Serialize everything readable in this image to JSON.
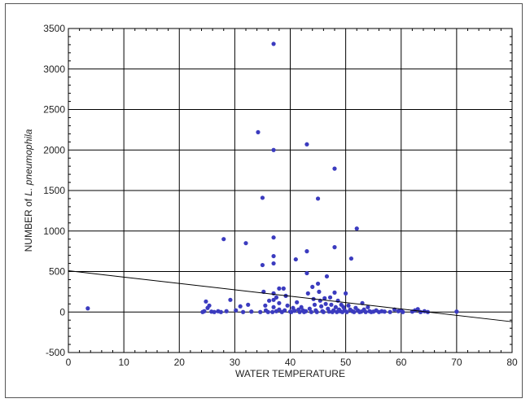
{
  "chart_data": {
    "type": "scatter",
    "title": "",
    "xlabel": "WATER TEMPERATURE",
    "ylabel_parts": [
      "NUMBER of ",
      "L. pneumophila"
    ],
    "xlim": [
      0,
      80
    ],
    "ylim": [
      -500,
      3500
    ],
    "x_ticks": [
      0,
      10,
      20,
      30,
      40,
      50,
      60,
      70,
      80
    ],
    "y_ticks": [
      -500,
      0,
      500,
      1000,
      1500,
      2000,
      2500,
      3000,
      3500
    ],
    "grid": true,
    "point_color": "#3b3bbf",
    "line_color": "#000000",
    "trendline": {
      "x": [
        0,
        80
      ],
      "y": [
        510,
        -120
      ]
    },
    "points": [
      [
        3.5,
        45
      ],
      [
        24.2,
        0
      ],
      [
        24.5,
        10
      ],
      [
        24.8,
        130
      ],
      [
        25.1,
        50
      ],
      [
        25.4,
        80
      ],
      [
        25.8,
        5
      ],
      [
        26.3,
        0
      ],
      [
        27.0,
        10
      ],
      [
        27.5,
        0
      ],
      [
        28.0,
        900
      ],
      [
        28.5,
        10
      ],
      [
        29.2,
        150
      ],
      [
        30.2,
        20
      ],
      [
        31.0,
        70
      ],
      [
        31.5,
        0
      ],
      [
        32.0,
        850
      ],
      [
        32.4,
        90
      ],
      [
        33.0,
        5
      ],
      [
        34.2,
        2220
      ],
      [
        34.6,
        0
      ],
      [
        35.0,
        1410
      ],
      [
        35.0,
        580
      ],
      [
        35.2,
        250
      ],
      [
        35.5,
        80
      ],
      [
        35.6,
        20
      ],
      [
        36.0,
        0
      ],
      [
        36.2,
        140
      ],
      [
        36.8,
        0
      ],
      [
        37.0,
        3310
      ],
      [
        37.0,
        2000
      ],
      [
        37.0,
        920
      ],
      [
        37.0,
        690
      ],
      [
        37.0,
        600
      ],
      [
        37.0,
        230
      ],
      [
        37.0,
        150
      ],
      [
        37.0,
        60
      ],
      [
        37.5,
        10
      ],
      [
        37.5,
        180
      ],
      [
        38.0,
        290
      ],
      [
        38.0,
        110
      ],
      [
        38.0,
        30
      ],
      [
        38.5,
        0
      ],
      [
        38.8,
        290
      ],
      [
        39.0,
        20
      ],
      [
        39.2,
        200
      ],
      [
        39.5,
        80
      ],
      [
        40.0,
        5
      ],
      [
        40.2,
        0
      ],
      [
        40.5,
        50
      ],
      [
        40.8,
        15
      ],
      [
        41.0,
        650
      ],
      [
        41.2,
        120
      ],
      [
        41.5,
        30
      ],
      [
        41.7,
        0
      ],
      [
        42.0,
        60
      ],
      [
        42.3,
        20
      ],
      [
        42.5,
        0
      ],
      [
        42.8,
        10
      ],
      [
        43.0,
        2070
      ],
      [
        43.0,
        750
      ],
      [
        43.0,
        480
      ],
      [
        43.2,
        230
      ],
      [
        43.5,
        40
      ],
      [
        43.8,
        0
      ],
      [
        44.0,
        310
      ],
      [
        44.2,
        160
      ],
      [
        44.4,
        90
      ],
      [
        44.6,
        20
      ],
      [
        44.8,
        0
      ],
      [
        45.0,
        1400
      ],
      [
        45.0,
        350
      ],
      [
        45.2,
        250
      ],
      [
        45.4,
        140
      ],
      [
        45.6,
        70
      ],
      [
        45.8,
        10
      ],
      [
        46.0,
        0
      ],
      [
        46.2,
        170
      ],
      [
        46.4,
        100
      ],
      [
        46.6,
        440
      ],
      [
        46.8,
        40
      ],
      [
        47.0,
        5
      ],
      [
        47.2,
        180
      ],
      [
        47.4,
        90
      ],
      [
        47.6,
        0
      ],
      [
        47.8,
        20
      ],
      [
        48.0,
        1770
      ],
      [
        48.0,
        800
      ],
      [
        48.0,
        240
      ],
      [
        48.2,
        60
      ],
      [
        48.4,
        0
      ],
      [
        48.6,
        140
      ],
      [
        48.8,
        30
      ],
      [
        49.0,
        10
      ],
      [
        49.2,
        90
      ],
      [
        49.4,
        0
      ],
      [
        49.6,
        60
      ],
      [
        49.8,
        20
      ],
      [
        50.0,
        230
      ],
      [
        50.2,
        0
      ],
      [
        50.5,
        80
      ],
      [
        50.8,
        30
      ],
      [
        51.0,
        660
      ],
      [
        51.2,
        10
      ],
      [
        51.5,
        0
      ],
      [
        51.8,
        50
      ],
      [
        52.0,
        1030
      ],
      [
        52.2,
        20
      ],
      [
        52.5,
        0
      ],
      [
        52.8,
        5
      ],
      [
        53.0,
        110
      ],
      [
        53.3,
        30
      ],
      [
        53.6,
        0
      ],
      [
        54.0,
        60
      ],
      [
        54.3,
        10
      ],
      [
        54.6,
        0
      ],
      [
        55.0,
        5
      ],
      [
        55.5,
        20
      ],
      [
        56.0,
        0
      ],
      [
        56.5,
        10
      ],
      [
        57.0,
        5
      ],
      [
        58.0,
        0
      ],
      [
        58.8,
        30
      ],
      [
        59.5,
        10
      ],
      [
        60.0,
        20
      ],
      [
        60.3,
        0
      ],
      [
        62.0,
        5
      ],
      [
        62.5,
        20
      ],
      [
        63.0,
        35
      ],
      [
        63.5,
        0
      ],
      [
        64.2,
        10
      ],
      [
        64.8,
        0
      ],
      [
        70.0,
        5
      ]
    ]
  }
}
